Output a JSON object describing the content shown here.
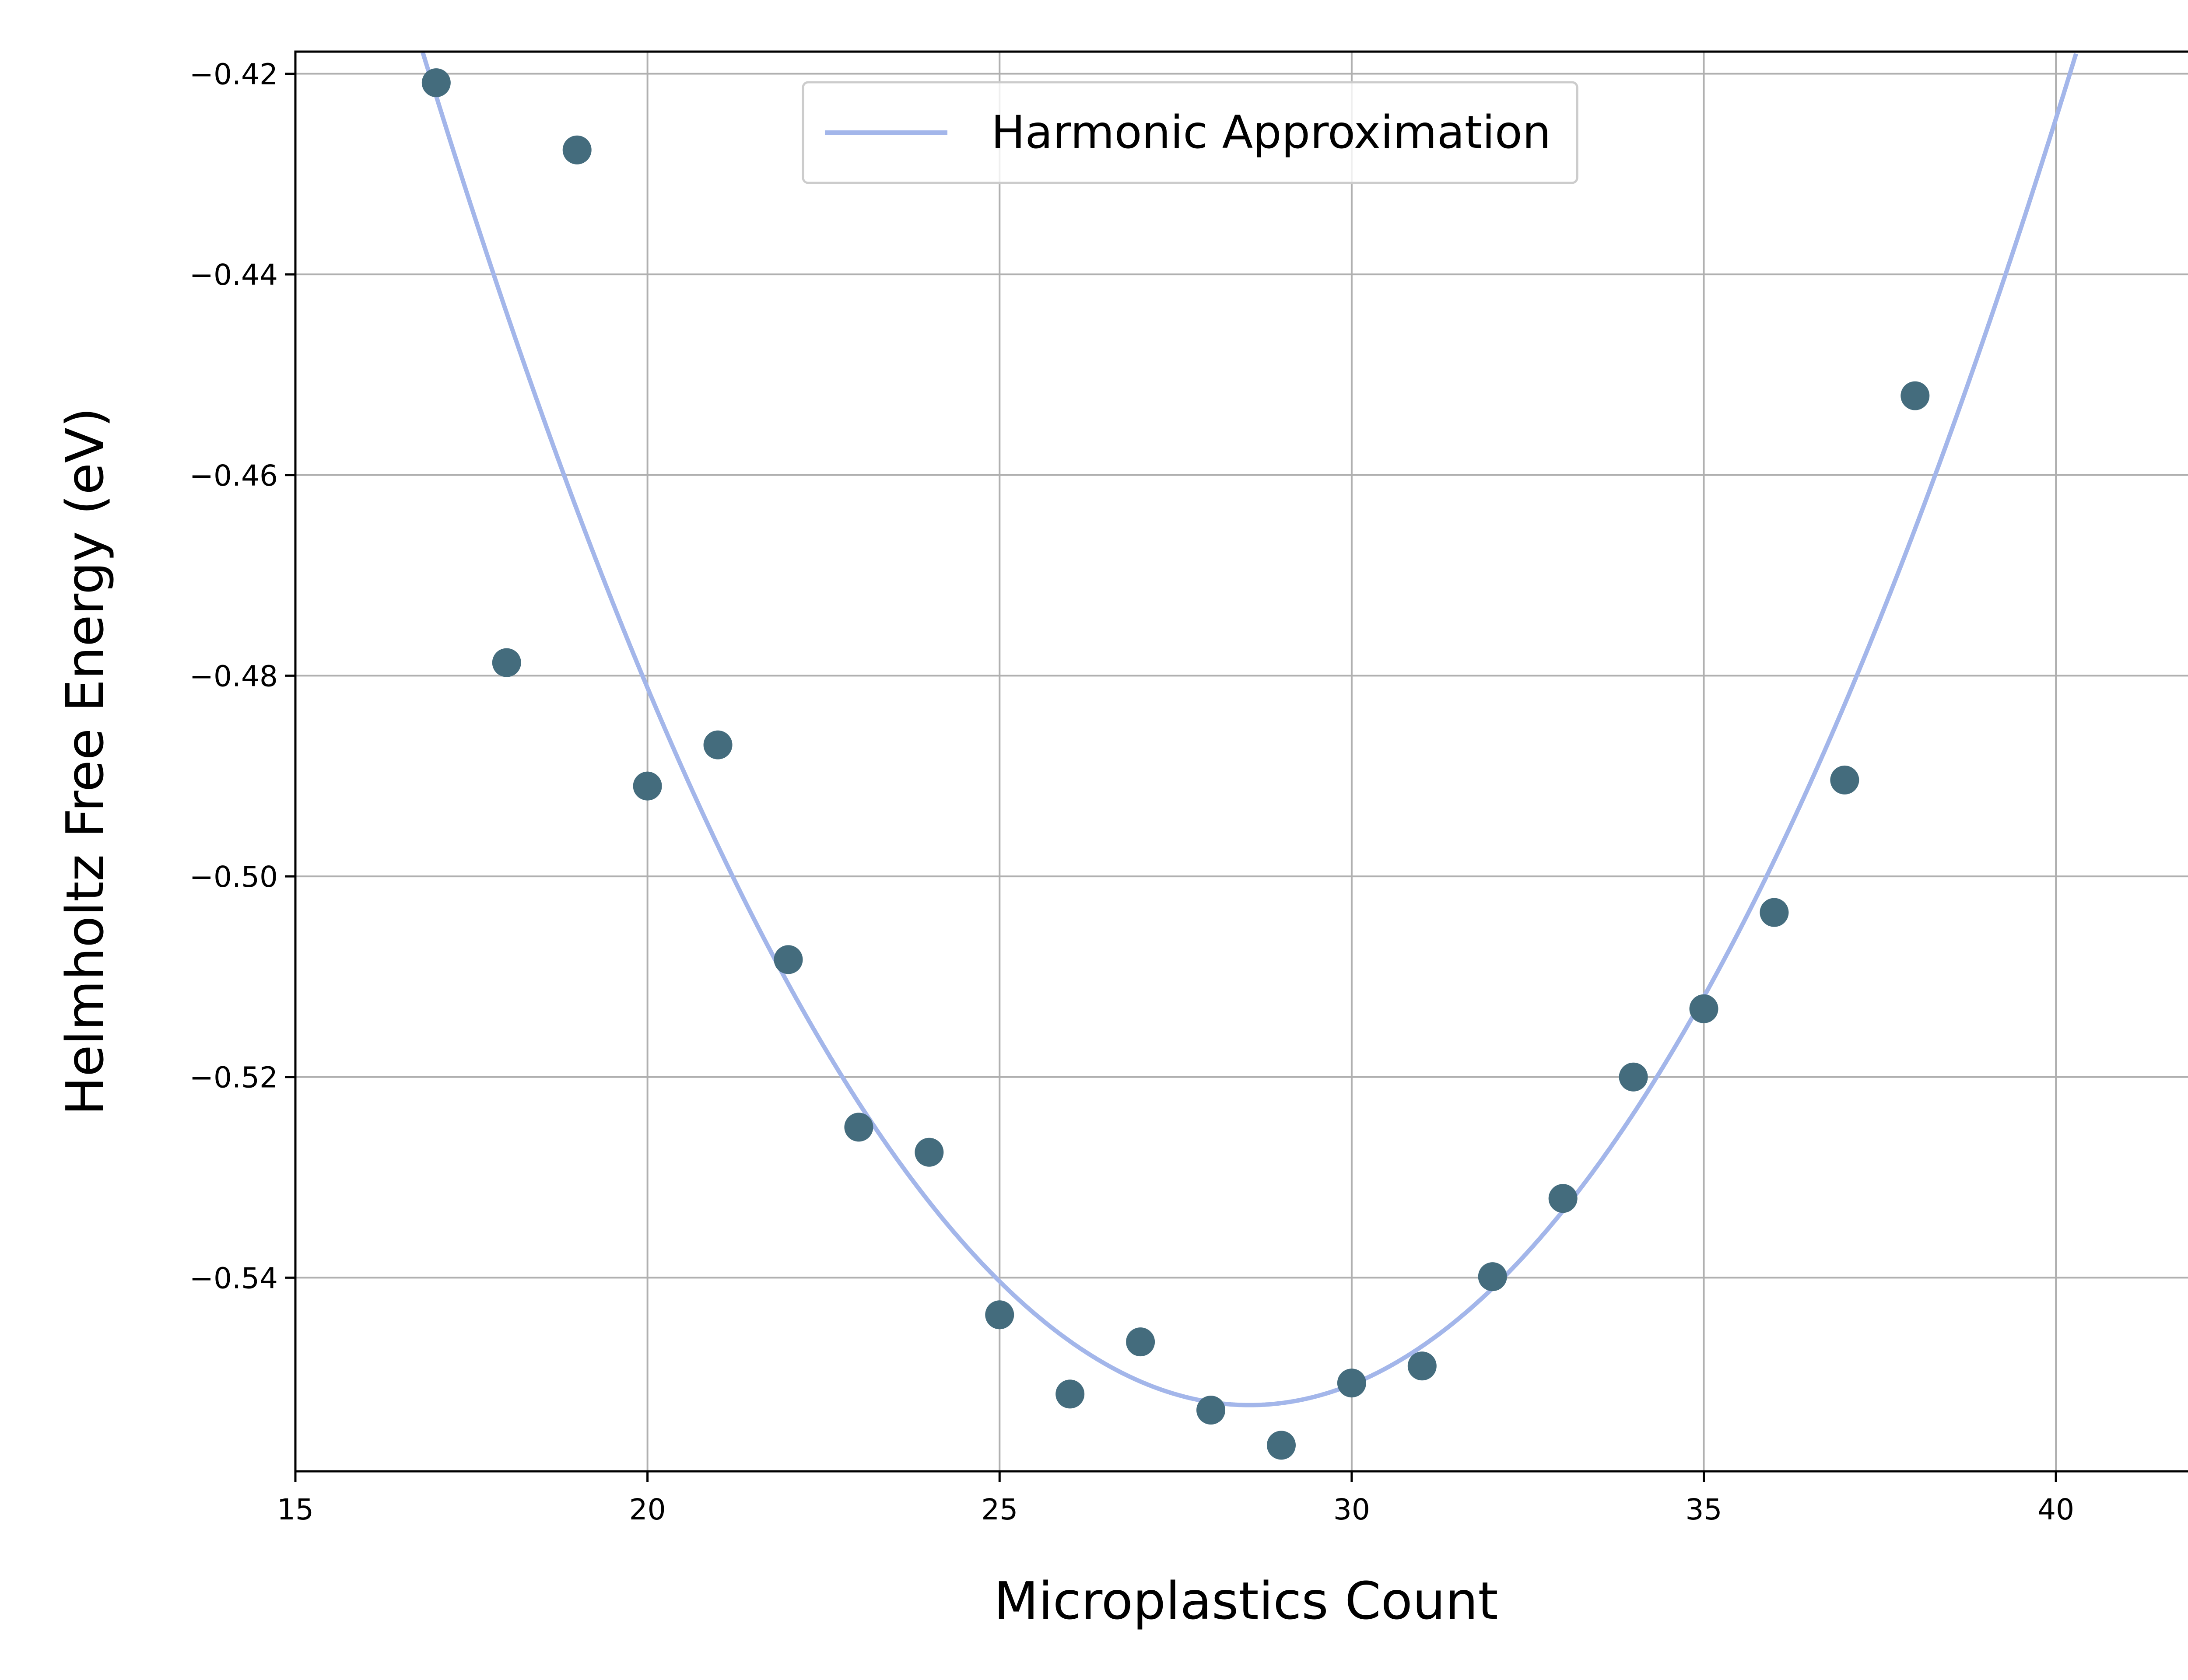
{
  "chart_data": {
    "type": "scatter",
    "title": "",
    "xlabel": "Microplastics Count",
    "ylabel": "Helmholtz Free Energy (eV)",
    "xlim": [
      15,
      42
    ],
    "ylim": [
      -0.5593,
      -0.4178
    ],
    "xticks": [
      15,
      20,
      25,
      30,
      35,
      40
    ],
    "xtick_labels": [
      "15",
      "20",
      "25",
      "30",
      "35",
      "40"
    ],
    "yticks": [
      -0.54,
      -0.52,
      -0.5,
      -0.48,
      -0.46,
      -0.44,
      -0.42
    ],
    "ytick_labels": [
      "−0.54",
      "−0.52",
      "−0.50",
      "−0.48",
      "−0.46",
      "−0.44",
      "−0.42"
    ],
    "grid": true,
    "legend": {
      "position": "upper-center",
      "entries": [
        "Harmonic Approximation"
      ]
    },
    "colors": {
      "points": "#446c7d",
      "fit_line": "#a3b6ea",
      "grid": "#b0b0b0"
    },
    "series": [
      {
        "kind": "scatter",
        "x": [
          17,
          18,
          19,
          20,
          21,
          22,
          23,
          24,
          25,
          26,
          27,
          28,
          29,
          30,
          31,
          32,
          33,
          34,
          35,
          36,
          37,
          38
        ],
        "y": [
          -0.4209,
          -0.4787,
          -0.4276,
          -0.491,
          -0.4869,
          -0.5083,
          -0.525,
          -0.5275,
          -0.5437,
          -0.5516,
          -0.5464,
          -0.5532,
          -0.5567,
          -0.5505,
          -0.5488,
          -0.5399,
          -0.5321,
          -0.52,
          -0.5132,
          -0.5036,
          -0.4904,
          -0.4521
        ]
      },
      {
        "kind": "line",
        "name": "Harmonic Approximation",
        "fit": {
          "x0": 28.55,
          "y0": -0.5527,
          "k": 0.000978
        }
      }
    ]
  }
}
